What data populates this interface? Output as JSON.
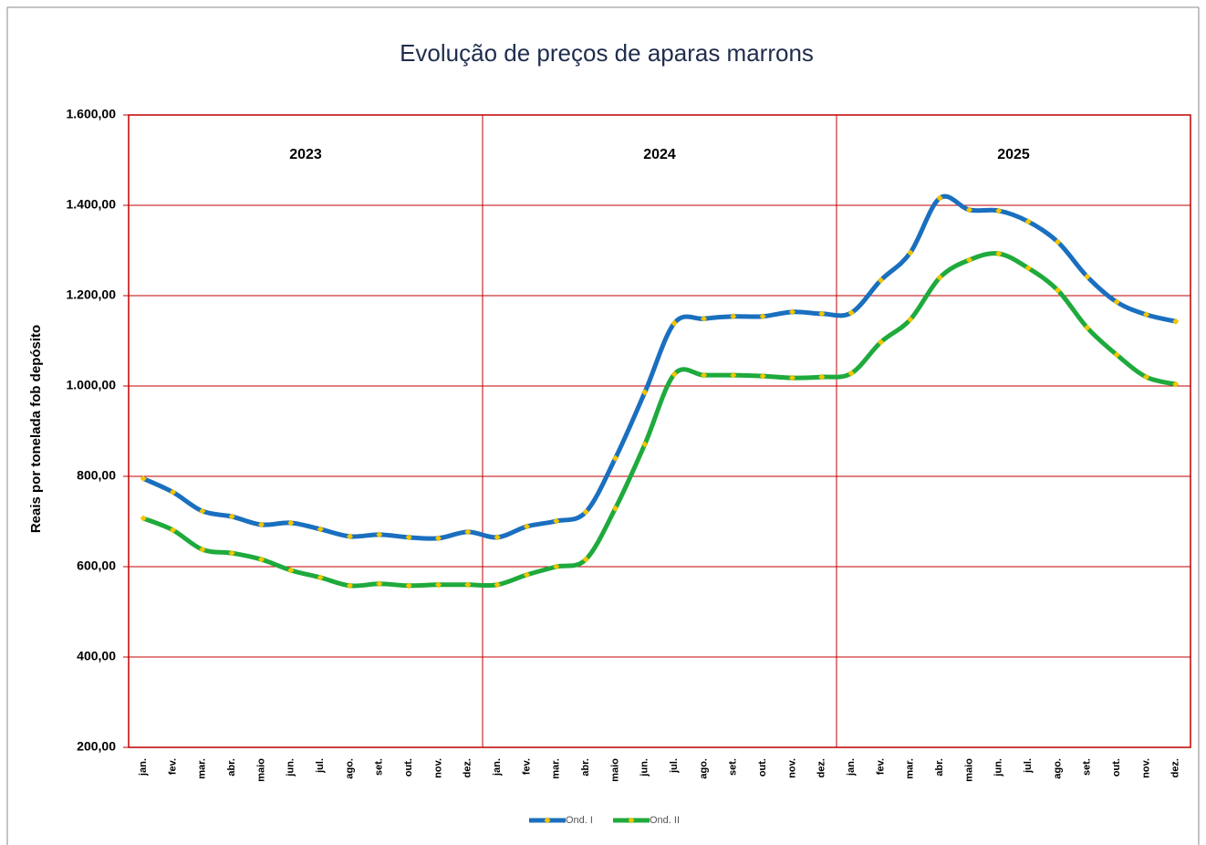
{
  "chart_data": {
    "type": "line",
    "title": "Evolução de preços de aparas marrons",
    "ylabel": "Reais por tonelada fob depósito",
    "annotations": [
      "2023",
      "2024",
      "2025"
    ],
    "categories": [
      "jan.",
      "fev.",
      "mar.",
      "abr.",
      "maio",
      "jun.",
      "jul.",
      "ago.",
      "set.",
      "out.",
      "nov.",
      "dez.",
      "jan.",
      "fev.",
      "mar.",
      "abr.",
      "maio",
      "jun.",
      "jul.",
      "ago.",
      "set.",
      "out.",
      "nov.",
      "dez.",
      "jan.",
      "fev.",
      "mar.",
      "abr.",
      "maio",
      "jun.",
      "jul.",
      "ago.",
      "set.",
      "out.",
      "nov.",
      "dez."
    ],
    "series": [
      {
        "name": "Ond. I",
        "color": "#1a6fbf",
        "values": [
          795,
          765,
          723,
          711,
          693,
          697,
          683,
          667,
          671,
          665,
          663,
          677,
          665,
          689,
          701,
          721,
          840,
          986,
          1139,
          1149,
          1154,
          1154,
          1164,
          1160,
          1162,
          1234,
          1295,
          1416,
          1390,
          1388,
          1364,
          1319,
          1242,
          1186,
          1158,
          1143
        ]
      },
      {
        "name": "Ond. II",
        "color": "#1eaa3c",
        "values": [
          707,
          681,
          638,
          630,
          616,
          592,
          576,
          558,
          562,
          558,
          560,
          560,
          560,
          582,
          600,
          616,
          729,
          871,
          1026,
          1024,
          1024,
          1022,
          1018,
          1020,
          1028,
          1097,
          1147,
          1240,
          1279,
          1293,
          1261,
          1212,
          1129,
          1069,
          1020,
          1004
        ]
      }
    ],
    "marker_color": "#f2c500",
    "ylim": [
      200,
      1600
    ],
    "yticks": [
      {
        "value": 200,
        "label": "200,00"
      },
      {
        "value": 400,
        "label": "400,00"
      },
      {
        "value": 600,
        "label": "600,00"
      },
      {
        "value": 800,
        "label": "800,00"
      },
      {
        "value": 1000,
        "label": "1.000,00"
      },
      {
        "value": 1200,
        "label": "1.200,00"
      },
      {
        "value": 1400,
        "label": "1.400,00"
      },
      {
        "value": 1600,
        "label": "1.600,00"
      }
    ],
    "grid": true,
    "legend": "bottom"
  }
}
